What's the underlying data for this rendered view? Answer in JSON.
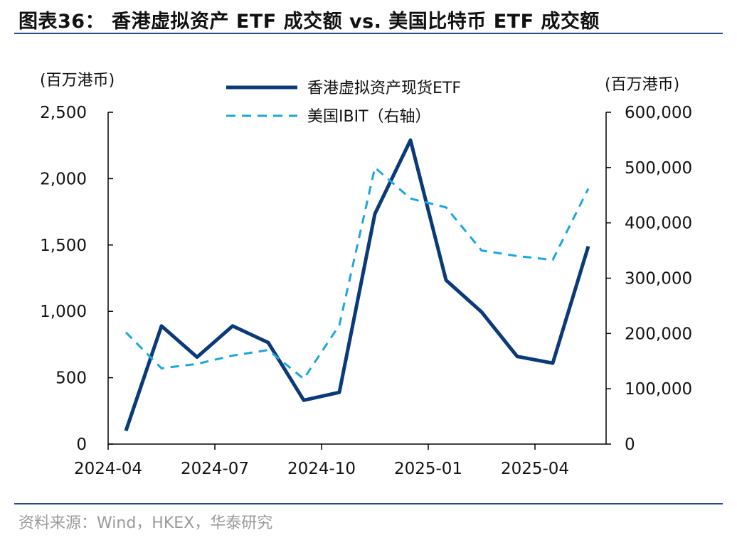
{
  "figure": {
    "title": "图表36： 香港虚拟资产 ETF 成交额  vs. 美国比特币 ETF 成交额",
    "source": "资料来源：Wind，HKEX，华泰研究"
  },
  "chart_data": {
    "type": "line",
    "x": [
      "2024-04",
      "2024-05",
      "2024-06",
      "2024-07",
      "2024-08",
      "2024-09",
      "2024-10",
      "2024-11",
      "2024-12",
      "2025-01",
      "2025-02",
      "2025-03",
      "2025-04",
      "2025-05"
    ],
    "x_tick_labels": [
      "2024-04",
      "2024-07",
      "2024-10",
      "2025-01",
      "2025-04"
    ],
    "series": [
      {
        "name": "香港虚拟资产现货ETF",
        "axis": "left",
        "style": "solid",
        "color": "#0b3a78",
        "values": [
          100,
          890,
          655,
          890,
          765,
          330,
          390,
          1735,
          2290,
          1235,
          995,
          660,
          610,
          1490
        ]
      },
      {
        "name": "美国IBIT（右轴）",
        "axis": "right",
        "style": "dashed",
        "color": "#1aa7e0",
        "values": [
          202000,
          137000,
          145000,
          160000,
          170000,
          118000,
          215000,
          500000,
          444000,
          428000,
          350000,
          340000,
          333000,
          462000
        ]
      }
    ],
    "y_left": {
      "unit_label": "(百万港币)",
      "ylim": [
        0,
        2500
      ],
      "ticks": [
        "0",
        "500",
        "1,000",
        "1,500",
        "2,000",
        "2,500"
      ]
    },
    "y_right": {
      "unit_label": "(百万港币)",
      "ylim": [
        0,
        600000
      ],
      "ticks": [
        "0",
        "100,000",
        "200,000",
        "300,000",
        "400,000",
        "500,000",
        "600,000"
      ]
    },
    "legend": "top-center",
    "grid": false
  }
}
